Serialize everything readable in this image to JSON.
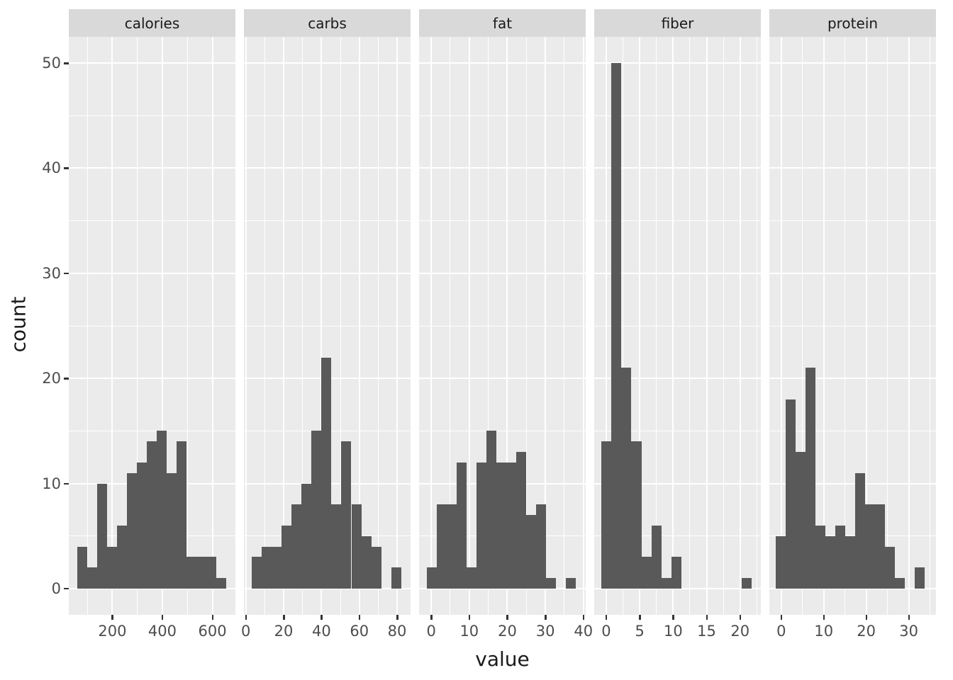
{
  "chart_data": {
    "type": "bar",
    "variant": "faceted_histogram",
    "title": "",
    "xlabel": "value",
    "ylabel": "count",
    "legend": "none",
    "grid": "on",
    "y_axis": {
      "ticks": [
        0,
        10,
        20,
        30,
        40,
        50
      ],
      "range": [
        -2.5,
        52.5
      ]
    },
    "observations_per_facet": 113,
    "facets": [
      {
        "label": "calories",
        "x_ticks": [
          200,
          400,
          600
        ],
        "x_range": [
          26,
          692
        ],
        "bin_start": 58.8,
        "bin_width": 39.7,
        "counts": [
          4,
          2,
          10,
          4,
          6,
          11,
          12,
          14,
          15,
          11,
          14,
          3,
          3,
          3,
          1
        ]
      },
      {
        "label": "carbs",
        "x_ticks": [
          0,
          20,
          40,
          60,
          80
        ],
        "x_range": [
          -1,
          87.1
        ],
        "bin_start": 3.1,
        "bin_width": 5.27,
        "counts": [
          3,
          4,
          4,
          6,
          8,
          10,
          15,
          22,
          8,
          14,
          8,
          5,
          4,
          0,
          2
        ]
      },
      {
        "label": "fat",
        "x_ticks": [
          0,
          10,
          20,
          30,
          40
        ],
        "x_range": [
          -3.2,
          40.6
        ],
        "bin_start": -1.2,
        "bin_width": 2.61,
        "counts": [
          2,
          8,
          8,
          12,
          2,
          12,
          15,
          12,
          12,
          13,
          7,
          8,
          1,
          0,
          1
        ]
      },
      {
        "label": "fiber",
        "x_ticks": [
          0,
          5,
          10,
          15,
          20
        ],
        "x_range": [
          -1.8,
          23.1
        ],
        "bin_start": -0.75,
        "bin_width": 1.5,
        "counts": [
          14,
          50,
          21,
          14,
          3,
          6,
          1,
          3,
          0,
          0,
          0,
          0,
          0,
          0,
          1
        ]
      },
      {
        "label": "protein",
        "x_ticks": [
          0,
          10,
          20,
          30
        ],
        "x_range": [
          -2.8,
          36.4
        ],
        "bin_start": -1.25,
        "bin_width": 2.33,
        "counts": [
          5,
          18,
          13,
          21,
          6,
          5,
          6,
          5,
          11,
          8,
          8,
          4,
          1,
          0,
          2
        ]
      }
    ]
  },
  "colors": {
    "bar": "#595959",
    "panel_background": "#EBEBEB",
    "strip_background": "#D9D9D9",
    "gridline": "#FFFFFF",
    "axis_text": "#4D4D4D",
    "axis_title_text": "#1A1A1A",
    "strip_text": "#1A1A1A",
    "tick_mark": "#333333",
    "page_background": "#FFFFFF"
  }
}
